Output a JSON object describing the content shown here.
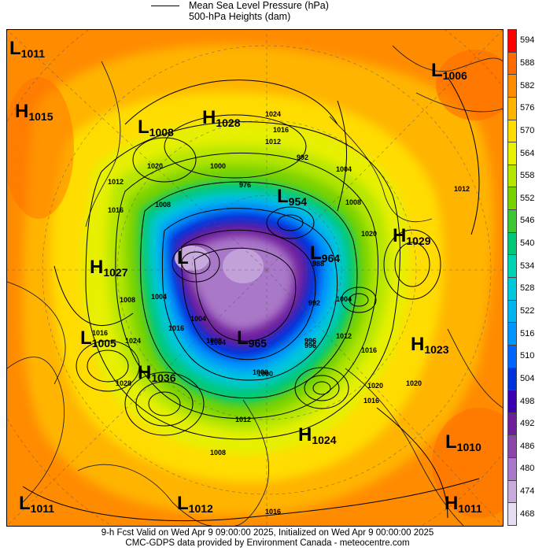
{
  "legend": {
    "mslp_label": "Mean Sea Level Pressure (hPa)",
    "heights_label": "500-hPa Heights (dam)"
  },
  "colorbar": {
    "levels": [
      "594",
      "588",
      "582",
      "576",
      "570",
      "564",
      "558",
      "552",
      "546",
      "540",
      "534",
      "528",
      "522",
      "516",
      "510",
      "504",
      "498",
      "492",
      "486",
      "480",
      "474",
      "468"
    ],
    "colors": [
      "#ff0000",
      "#ff6a00",
      "#ff8c00",
      "#ffb400",
      "#ffdc00",
      "#e6f000",
      "#b4e600",
      "#78d200",
      "#3cc832",
      "#00c878",
      "#00d2b4",
      "#00c8dc",
      "#00b4f0",
      "#0096ff",
      "#0064ff",
      "#0032dc",
      "#3c00b4",
      "#6e1e9b",
      "#8c46aa",
      "#aa78c8",
      "#c8aadc",
      "#e6dcf0"
    ]
  },
  "pressure_centers": [
    {
      "type": "L",
      "value": "1011"
    },
    {
      "type": "L",
      "value": "1006"
    },
    {
      "type": "H",
      "value": "1015"
    },
    {
      "type": "L",
      "value": "1008"
    },
    {
      "type": "H",
      "value": "1028"
    },
    {
      "type": "L",
      "value": "954"
    },
    {
      "type": "H",
      "value": "1029"
    },
    {
      "type": "L",
      "value": "964"
    },
    {
      "type": "H",
      "value": "1027"
    },
    {
      "type": "L",
      "value": ""
    },
    {
      "type": "L",
      "value": "1005"
    },
    {
      "type": "L",
      "value": "965"
    },
    {
      "type": "H",
      "value": "1023"
    },
    {
      "type": "H",
      "value": "1036"
    },
    {
      "type": "H",
      "value": "1024"
    },
    {
      "type": "L",
      "value": "1010"
    },
    {
      "type": "L",
      "value": "1011"
    },
    {
      "type": "L",
      "value": "1012"
    },
    {
      "type": "H",
      "value": "1011"
    }
  ],
  "contour_labels": [
    "1024",
    "1016",
    "1012",
    "992",
    "1020",
    "1000",
    "1004",
    "1008",
    "1016",
    "1012",
    "1008",
    "1020",
    "1008",
    "1004",
    "1024",
    "1016",
    "1004",
    "1016",
    "1008",
    "1028",
    "1000",
    "1012",
    "1004",
    "996",
    "1000",
    "992",
    "1008",
    "1012",
    "1016",
    "1020",
    "996",
    "1016",
    "1020",
    "1012",
    "1004",
    "1016",
    "976",
    "988"
  ],
  "footer": {
    "line1": "9-h Fcst Valid on Wed Apr  9 09:00:00 2025, Initialized on Wed Apr  9 00:00:00 2025",
    "line2": "CMC-GDPS data provided by Environment Canada - meteocentre.com"
  }
}
